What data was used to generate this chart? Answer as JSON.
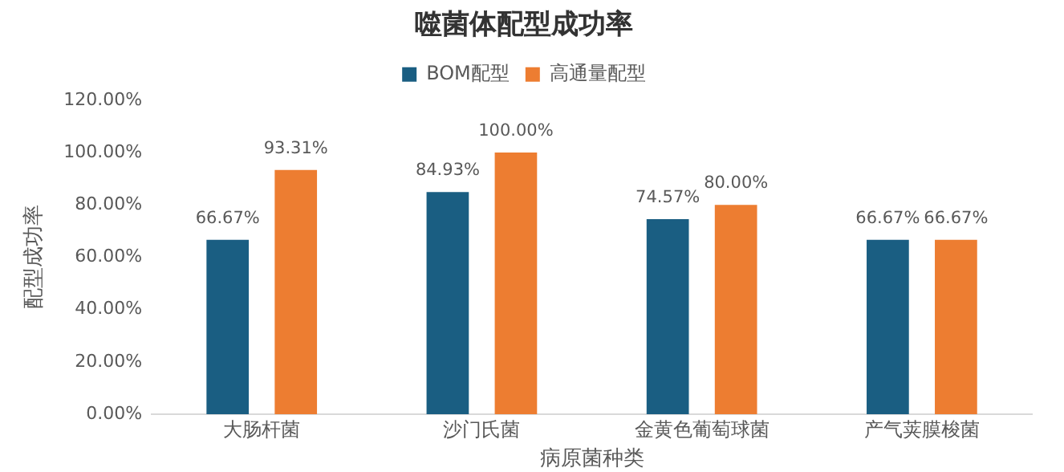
{
  "chart_data": {
    "type": "bar",
    "title": "噬菌体配型成功率",
    "xlabel": "病原菌种类",
    "ylabel": "配型成功率",
    "categories": [
      "大肠杆菌",
      "沙门氏菌",
      "金黄色葡萄球菌",
      "产气荚膜梭菌"
    ],
    "series": [
      {
        "name": "BOM配型",
        "color": "#1a5e82",
        "values": [
          66.67,
          84.93,
          74.57,
          66.67
        ],
        "value_labels": [
          "66.67%",
          "84.93%",
          "74.57%",
          "66.67%"
        ]
      },
      {
        "name": "高通量配型",
        "color": "#ed7d31",
        "values": [
          93.31,
          100,
          80,
          66.67
        ],
        "value_labels": [
          "93.31%",
          "100.00%",
          "80.00%",
          "66.67%"
        ]
      }
    ],
    "ylim": [
      0,
      120
    ],
    "yticks": [
      {
        "value": 0,
        "label": "0.00%"
      },
      {
        "value": 20,
        "label": "20.00%"
      },
      {
        "value": 40,
        "label": "40.00%"
      },
      {
        "value": 60,
        "label": "60.00%"
      },
      {
        "value": 80,
        "label": "80.00%"
      },
      {
        "value": 100,
        "label": "100.00%"
      },
      {
        "value": 120,
        "label": "120.00%"
      }
    ],
    "grid": false,
    "legend": "top"
  }
}
